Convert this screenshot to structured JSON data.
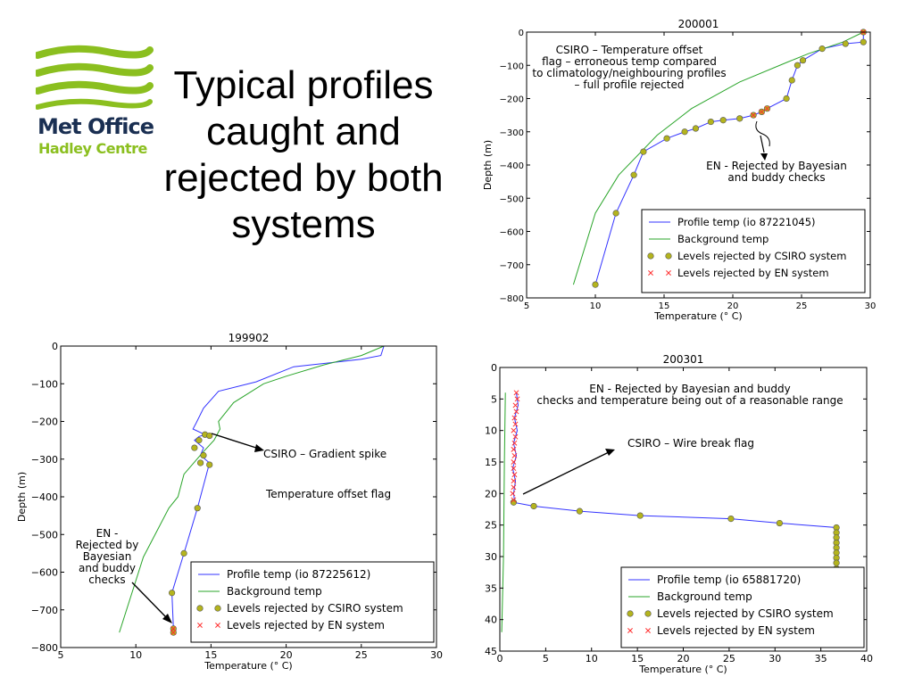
{
  "slide": {
    "title": "Typical profiles caught and rejected by both systems",
    "logo_line1": "Met Office",
    "logo_line2": "Hadley Centre",
    "logo_icon": "met-office-wave-logo",
    "colors": {
      "logo_navy": "#1a2f52",
      "logo_green": "#8bbf1f",
      "profile": "#3333ff",
      "background": "#2aa52a",
      "csiro": "#b4b41e",
      "en": "#ff3030"
    }
  },
  "chart_data": [
    {
      "type": "line",
      "title": "200001",
      "xlabel": "Temperature (° C)",
      "ylabel": "Depth (m)",
      "xlim": [
        5,
        30
      ],
      "ylim": [
        -800,
        0
      ],
      "xticks": [
        5,
        10,
        15,
        20,
        25,
        30
      ],
      "yticks": [
        0,
        -100,
        -200,
        -300,
        -400,
        -500,
        -600,
        -700,
        -800
      ],
      "grid": false,
      "legend": {
        "placement": "bottom-right",
        "entries": [
          "Profile temp (io 87221045)",
          "Background temp",
          "Levels rejected by CSIRO system",
          "Levels rejected by EN system"
        ]
      },
      "series": [
        {
          "name": "Profile temp (io 87221045)",
          "style": "line",
          "color": "#3333ff",
          "x": [
            29.5,
            29.5,
            28.2,
            26.5,
            25.1,
            24.7,
            24.3,
            23.9,
            22.5,
            22.1,
            21.5,
            20.5,
            19.3,
            18.4,
            17.3,
            16.5,
            15.2,
            13.5,
            12.8,
            11.5,
            10
          ],
          "y": [
            0,
            -30,
            -35,
            -50,
            -85,
            -100,
            -145,
            -200,
            -230,
            -240,
            -250,
            -260,
            -265,
            -270,
            -290,
            -300,
            -320,
            -360,
            -430,
            -545,
            -760
          ]
        },
        {
          "name": "Background temp",
          "style": "line",
          "color": "#2aa52a",
          "x": [
            29.5,
            28,
            25.5,
            24,
            20.5,
            17,
            14.5,
            11.7,
            10,
            8.4
          ],
          "y": [
            0,
            -30,
            -65,
            -90,
            -150,
            -230,
            -310,
            -430,
            -545,
            -760
          ]
        },
        {
          "name": "Levels rejected by CSIRO system",
          "style": "marker-circle",
          "color": "#b4b41e",
          "x": [
            29.5,
            29.5,
            28.2,
            26.5,
            25.1,
            24.7,
            24.3,
            23.9,
            22.5,
            22.1,
            21.5,
            20.5,
            19.3,
            18.4,
            17.3,
            16.5,
            15.2,
            13.5,
            12.8,
            11.5,
            10
          ],
          "y": [
            0,
            -30,
            -35,
            -50,
            -85,
            -100,
            -145,
            -200,
            -230,
            -240,
            -250,
            -260,
            -265,
            -270,
            -290,
            -300,
            -320,
            -360,
            -430,
            -545,
            -760
          ]
        },
        {
          "name": "Levels rejected by EN system",
          "style": "marker-x",
          "color": "#ff3030",
          "x": [
            29.5,
            22.5,
            22.1,
            21.5
          ],
          "y": [
            0,
            -230,
            -240,
            -250
          ]
        }
      ],
      "annotations": [
        {
          "text": "CSIRO – Temperature offset flag – erroneous temp compared to climatology/neighbouring profiles – full profile rejected"
        },
        {
          "text": "EN - Rejected by Bayesian and buddy checks"
        }
      ]
    },
    {
      "type": "line",
      "title": "199902",
      "xlabel": "Temperature (° C)",
      "ylabel": "Depth (m)",
      "xlim": [
        5,
        30
      ],
      "ylim": [
        -800,
        0
      ],
      "xticks": [
        5,
        10,
        15,
        20,
        25,
        30
      ],
      "yticks": [
        0,
        -100,
        -200,
        -300,
        -400,
        -500,
        -600,
        -700,
        -800
      ],
      "grid": false,
      "legend": {
        "placement": "bottom-right",
        "entries": [
          "Profile temp (io 87225612)",
          "Background temp",
          "Levels rejected by CSIRO system",
          "Levels rejected by EN system"
        ]
      },
      "series": [
        {
          "name": "Profile temp (io 87225612)",
          "style": "line",
          "color": "#3333ff",
          "x": [
            26.5,
            26.3,
            25,
            20.5,
            18,
            15.5,
            14.5,
            14,
            13.8,
            14.6,
            14.2,
            13.9,
            14.5,
            14.3,
            14.9,
            14.1,
            13.2,
            12.4,
            12.5,
            12.5
          ],
          "y": [
            0,
            -25,
            -35,
            -55,
            -95,
            -120,
            -165,
            -205,
            -220,
            -235,
            -240,
            -250,
            -270,
            -290,
            -310,
            -430,
            -550,
            -655,
            -750,
            -760
          ]
        },
        {
          "name": "Background temp",
          "style": "line",
          "color": "#2aa52a",
          "x": [
            26.5,
            25,
            22.5,
            20,
            18.5,
            16.5,
            15.5,
            15.6,
            15.2,
            14.5,
            13.2,
            12.8,
            12.2,
            10.5,
            8.9
          ],
          "y": [
            0,
            -25,
            -50,
            -80,
            -100,
            -150,
            -200,
            -220,
            -250,
            -280,
            -340,
            -400,
            -430,
            -560,
            -760
          ]
        },
        {
          "name": "Levels rejected by CSIRO system",
          "style": "marker-circle",
          "color": "#b4b41e",
          "x": [
            14.6,
            14.9,
            14.2,
            13.9,
            14.5,
            14.3,
            14.9,
            14.1,
            13.2,
            12.4,
            12.5,
            12.5
          ],
          "y": [
            -235,
            -238,
            -250,
            -270,
            -290,
            -310,
            -315,
            -430,
            -550,
            -655,
            -750,
            -760
          ]
        },
        {
          "name": "Levels rejected by EN system",
          "style": "marker-x",
          "color": "#ff3030",
          "x": [
            12.5,
            12.5
          ],
          "y": [
            -750,
            -760
          ]
        }
      ],
      "annotations": [
        {
          "text": "CSIRO – Gradient spike"
        },
        {
          "text": "Temperature offset flag"
        },
        {
          "text": "EN - Rejected by Bayesian and buddy checks"
        }
      ]
    },
    {
      "type": "line",
      "title": "200301",
      "xlabel": "Temperature (° C)",
      "ylabel": "",
      "xlim": [
        0,
        40
      ],
      "ylim": [
        45,
        0
      ],
      "xticks": [
        0,
        5,
        10,
        15,
        20,
        25,
        30,
        35,
        40
      ],
      "yticks": [
        0,
        5,
        10,
        15,
        20,
        25,
        30,
        35,
        40,
        45
      ],
      "grid": false,
      "legend": {
        "placement": "bottom-right",
        "entries": [
          "Profile temp (io 65881720)",
          "Background temp",
          "Levels rejected by CSIRO system",
          "Levels rejected by EN system"
        ]
      },
      "series": [
        {
          "name": "Profile temp (io 65881720)",
          "style": "line",
          "color": "#3333ff",
          "x": [
            1.8,
            2.0,
            1.6,
            1.9,
            1.5,
            1.8,
            1.4,
            1.7,
            1.5,
            1.6,
            1.5,
            3.7,
            8.7,
            15.3,
            25.2,
            30.5,
            36.7,
            36.7
          ],
          "y": [
            4,
            6,
            8,
            10,
            12,
            14,
            16,
            18,
            20,
            21,
            21.4,
            22,
            22.8,
            23.5,
            24,
            24.7,
            25.4,
            32.7
          ]
        },
        {
          "name": "Background temp",
          "style": "line",
          "color": "#2aa52a",
          "x": [
            0.6,
            0.5,
            0.4,
            0.2
          ],
          "y": [
            4,
            15,
            30,
            42
          ]
        },
        {
          "name": "Levels rejected by CSIRO system",
          "style": "marker-circle",
          "color": "#b4b41e",
          "x": [
            1.5,
            3.7,
            8.7,
            15.3,
            25.2,
            30.5,
            36.7,
            36.7,
            36.7,
            36.7,
            36.7,
            36.7,
            36.7,
            36.7,
            36.7,
            36.7
          ],
          "y": [
            21.4,
            22,
            22.8,
            23.5,
            24,
            24.7,
            25.4,
            26.2,
            27,
            27.8,
            28.6,
            29.4,
            30.2,
            31,
            31.9,
            32.7
          ]
        },
        {
          "name": "Levels rejected by EN system",
          "style": "marker-x",
          "color": "#ff3030",
          "x": [
            1.8,
            1.9,
            1.7,
            1.8,
            1.6,
            1.7,
            1.5,
            1.7,
            1.6,
            1.5,
            1.6,
            1.5,
            1.5,
            1.6,
            1.5,
            1.5,
            1.4,
            1.5
          ],
          "y": [
            4,
            5,
            6,
            7,
            8,
            9,
            10,
            11,
            12,
            13,
            14,
            15,
            16,
            17,
            18,
            19,
            20,
            21
          ]
        }
      ],
      "annotations": [
        {
          "text": "EN - Rejected by Bayesian and buddy checks and temperature being out of a reasonable range"
        },
        {
          "text": "CSIRO – Wire break flag"
        }
      ]
    }
  ]
}
